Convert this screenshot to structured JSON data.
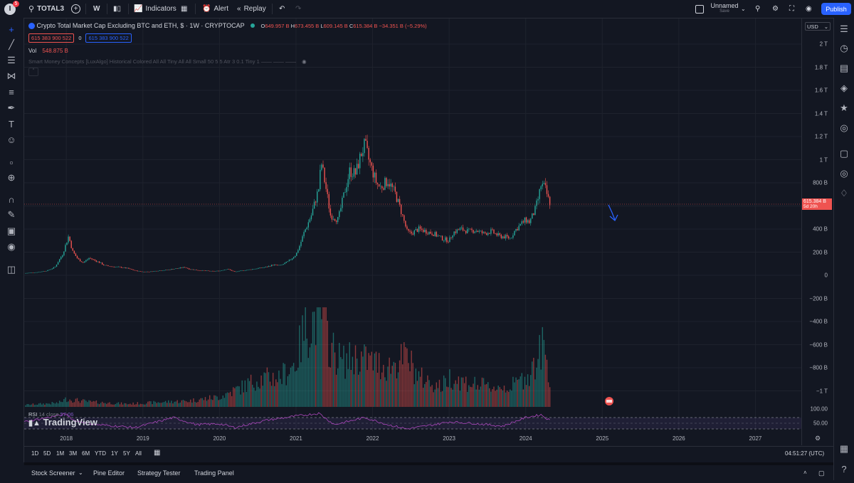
{
  "topbar": {
    "user_initial": "I",
    "notification_count": "5",
    "symbol": "TOTAL3",
    "interval": "W",
    "indicators_label": "Indicators",
    "alert_label": "Alert",
    "replay_label": "Replay",
    "layout_name": "Unnamed",
    "layout_status": "Save",
    "publish_label": "Publish"
  },
  "legend": {
    "title": "Crypto Total Market Cap Excluding BTC and ETH, $ · 1W · CRYPTOCAP",
    "o_label": "O",
    "o_value": "649.957 B",
    "h_label": "H",
    "h_value": "673.455 B",
    "l_label": "L",
    "l_value": "609.145 B",
    "c_label": "C",
    "c_value": "615.384 B",
    "change": "−34.351 B (−5.29%)",
    "bid": "615 383 900 522",
    "spread": "0",
    "ask": "615 383 900 522",
    "vol_label": "Vol",
    "vol_value": "548.875 B",
    "indicator_text": "Smart Money Concepts [LuxAlgo] Historical Colored All All Tiny All All Small 50 5 5 Atr 3 0.1 Tiny 1 —— —— ——",
    "rsi_label": "RSI",
    "rsi_params": "14 close",
    "rsi_value": "57.06",
    "watermark": "TradingView"
  },
  "currency": "USD",
  "price_axis": [
    "2 T",
    "1.8 T",
    "1.6 T",
    "1.4 T",
    "1.2 T",
    "1 T",
    "800 B",
    "600 B",
    "400 B",
    "200 B",
    "0",
    "−200 B",
    "−400 B",
    "−600 B",
    "−800 B",
    "−1 T"
  ],
  "price_axis_values": [
    2000,
    1800,
    1600,
    1400,
    1200,
    1000,
    800,
    600,
    400,
    200,
    0,
    -200,
    -400,
    -600,
    -800,
    -1000
  ],
  "last_price_label": "615.384 B",
  "countdown": "5d 20h",
  "rsi_axis": [
    "100.00",
    "50.00"
  ],
  "time_axis": [
    "2018",
    "2019",
    "2020",
    "2021",
    "2022",
    "2023",
    "2024",
    "2025",
    "2026",
    "2027"
  ],
  "timeframes": [
    "1D",
    "5D",
    "1M",
    "3M",
    "6M",
    "YTD",
    "1Y",
    "5Y",
    "All"
  ],
  "clock": "04:51:27 (UTC)",
  "bottom_tabs": [
    "Stock Screener",
    "Pine Editor",
    "Strategy Tester",
    "Trading Panel"
  ],
  "colors": {
    "up": "#26a69a",
    "down": "#ef5350",
    "accent": "#2962ff",
    "rsi": "#7e57c2",
    "bg": "#131722"
  },
  "chart_data": {
    "type": "candlestick",
    "title": "Crypto Total Market Cap Excluding BTC and ETH, $ · 1W · CRYPTOCAP",
    "unit": "B",
    "ylim": [
      -1000,
      2100
    ],
    "x_range": [
      2017.45,
      2027.6
    ],
    "price_path": [
      [
        2017.45,
        18
      ],
      [
        2017.6,
        25
      ],
      [
        2017.75,
        40
      ],
      [
        2017.85,
        70
      ],
      [
        2017.95,
        180
      ],
      [
        2018.0,
        280
      ],
      [
        2018.03,
        340
      ],
      [
        2018.08,
        210
      ],
      [
        2018.15,
        140
      ],
      [
        2018.22,
        110
      ],
      [
        2018.3,
        150
      ],
      [
        2018.35,
        135
      ],
      [
        2018.42,
        115
      ],
      [
        2018.5,
        85
      ],
      [
        2018.6,
        75
      ],
      [
        2018.7,
        70
      ],
      [
        2018.8,
        60
      ],
      [
        2018.9,
        40
      ],
      [
        2019.0,
        30
      ],
      [
        2019.1,
        32
      ],
      [
        2019.2,
        40
      ],
      [
        2019.3,
        45
      ],
      [
        2019.4,
        55
      ],
      [
        2019.5,
        65
      ],
      [
        2019.55,
        70
      ],
      [
        2019.6,
        55
      ],
      [
        2019.7,
        45
      ],
      [
        2019.8,
        40
      ],
      [
        2019.9,
        35
      ],
      [
        2020.0,
        38
      ],
      [
        2020.1,
        55
      ],
      [
        2020.2,
        30
      ],
      [
        2020.3,
        40
      ],
      [
        2020.4,
        50
      ],
      [
        2020.5,
        60
      ],
      [
        2020.6,
        70
      ],
      [
        2020.7,
        90
      ],
      [
        2020.8,
        85
      ],
      [
        2020.9,
        120
      ],
      [
        2021.0,
        180
      ],
      [
        2021.05,
        260
      ],
      [
        2021.1,
        360
      ],
      [
        2021.2,
        520
      ],
      [
        2021.3,
        760
      ],
      [
        2021.33,
        980
      ],
      [
        2021.4,
        720
      ],
      [
        2021.45,
        520
      ],
      [
        2021.55,
        480
      ],
      [
        2021.62,
        680
      ],
      [
        2021.7,
        900
      ],
      [
        2021.78,
        880
      ],
      [
        2021.85,
        1050
      ],
      [
        2021.9,
        1130
      ],
      [
        2021.95,
        1000
      ],
      [
        2022.0,
        900
      ],
      [
        2022.05,
        800
      ],
      [
        2022.1,
        760
      ],
      [
        2022.2,
        820
      ],
      [
        2022.3,
        700
      ],
      [
        2022.37,
        560
      ],
      [
        2022.45,
        380
      ],
      [
        2022.5,
        360
      ],
      [
        2022.6,
        400
      ],
      [
        2022.7,
        380
      ],
      [
        2022.8,
        360
      ],
      [
        2022.9,
        320
      ],
      [
        2023.0,
        300
      ],
      [
        2023.05,
        370
      ],
      [
        2023.15,
        400
      ],
      [
        2023.25,
        380
      ],
      [
        2023.35,
        390
      ],
      [
        2023.45,
        360
      ],
      [
        2023.55,
        380
      ],
      [
        2023.65,
        340
      ],
      [
        2023.75,
        330
      ],
      [
        2023.8,
        320
      ],
      [
        2023.85,
        380
      ],
      [
        2023.92,
        430
      ],
      [
        2024.0,
        480
      ],
      [
        2024.05,
        460
      ],
      [
        2024.12,
        560
      ],
      [
        2024.17,
        680
      ],
      [
        2024.2,
        780
      ],
      [
        2024.25,
        760
      ],
      [
        2024.3,
        650
      ],
      [
        2024.33,
        615
      ]
    ],
    "volume_path": [
      [
        2017.45,
        0.02
      ],
      [
        2017.9,
        0.04
      ],
      [
        2018.0,
        0.08
      ],
      [
        2018.3,
        0.05
      ],
      [
        2018.8,
        0.03
      ],
      [
        2019.3,
        0.05
      ],
      [
        2019.6,
        0.06
      ],
      [
        2020.0,
        0.1
      ],
      [
        2020.3,
        0.2
      ],
      [
        2020.5,
        0.28
      ],
      [
        2020.8,
        0.3
      ],
      [
        2021.0,
        0.45
      ],
      [
        2021.1,
        0.75
      ],
      [
        2021.2,
        0.85
      ],
      [
        2021.33,
        0.95
      ],
      [
        2021.45,
        0.6
      ],
      [
        2021.6,
        0.45
      ],
      [
        2021.8,
        0.5
      ],
      [
        2022.0,
        0.45
      ],
      [
        2022.2,
        0.4
      ],
      [
        2022.45,
        0.5
      ],
      [
        2022.6,
        0.3
      ],
      [
        2022.9,
        0.2
      ],
      [
        2023.0,
        0.3
      ],
      [
        2023.2,
        0.25
      ],
      [
        2023.5,
        0.2
      ],
      [
        2023.8,
        0.2
      ],
      [
        2024.0,
        0.3
      ],
      [
        2024.15,
        0.45
      ],
      [
        2024.22,
        0.62
      ],
      [
        2024.3,
        0.4
      ],
      [
        2024.33,
        0.05
      ]
    ],
    "rsi_path": [
      [
        2017.45,
        55
      ],
      [
        2018.0,
        82
      ],
      [
        2018.1,
        60
      ],
      [
        2018.4,
        45
      ],
      [
        2018.9,
        35
      ],
      [
        2019.4,
        70
      ],
      [
        2019.7,
        45
      ],
      [
        2020.0,
        48
      ],
      [
        2020.2,
        35
      ],
      [
        2020.6,
        60
      ],
      [
        2021.0,
        75
      ],
      [
        2021.3,
        85
      ],
      [
        2021.5,
        45
      ],
      [
        2021.9,
        70
      ],
      [
        2022.2,
        45
      ],
      [
        2022.45,
        30
      ],
      [
        2022.8,
        45
      ],
      [
        2023.0,
        55
      ],
      [
        2023.3,
        50
      ],
      [
        2023.7,
        40
      ],
      [
        2024.0,
        70
      ],
      [
        2024.2,
        80
      ],
      [
        2024.33,
        57
      ]
    ],
    "last_price": 615.384,
    "annotation": "down-arrow"
  }
}
